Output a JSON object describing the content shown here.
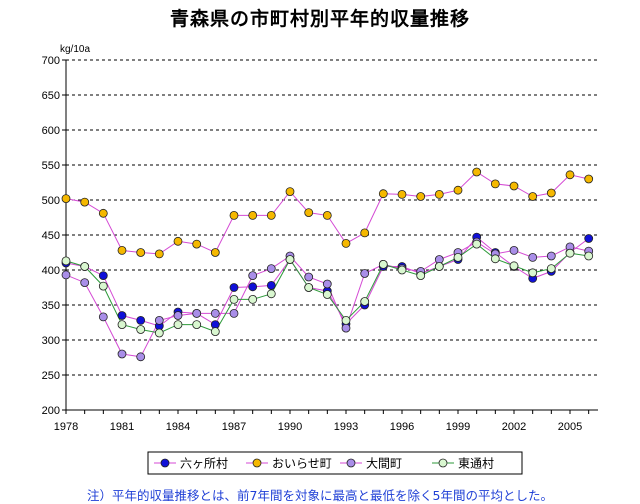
{
  "chart_data": {
    "type": "line",
    "title": "青森県の市町村別平年的収量推移",
    "ylabel": "kg/10a",
    "xlabel": "",
    "ylim": [
      200,
      700
    ],
    "yticks": [
      "200",
      "250",
      "300",
      "350",
      "400",
      "450",
      "500",
      "550",
      "600",
      "650",
      "700"
    ],
    "xticks": [
      "1978",
      "1981",
      "1984",
      "1987",
      "1990",
      "1993",
      "1996",
      "1999",
      "2002",
      "2005"
    ],
    "x": [
      1978,
      1979,
      1980,
      1981,
      1982,
      1983,
      1984,
      1985,
      1986,
      1987,
      1988,
      1989,
      1990,
      1991,
      1992,
      1993,
      1994,
      1995,
      1996,
      1997,
      1998,
      1999,
      2000,
      2001,
      2002,
      2003,
      2004,
      2005,
      2006
    ],
    "grid": true,
    "series": [
      {
        "name": "六ヶ所村",
        "line_color": "#d44ad4",
        "marker_color": "#1010d8",
        "values": [
          410,
          405,
          392,
          335,
          328,
          320,
          340,
          338,
          322,
          375,
          376,
          378,
          415,
          375,
          370,
          323,
          350,
          405,
          405,
          395,
          405,
          415,
          447,
          425,
          405,
          388,
          398,
          425,
          445
        ]
      },
      {
        "name": "おいらせ町",
        "line_color": "#d44ad4",
        "marker_color": "#f5b800",
        "values": [
          502,
          497,
          481,
          428,
          425,
          423,
          441,
          437,
          425,
          478,
          478,
          478,
          512,
          482,
          478,
          438,
          453,
          509,
          508,
          505,
          508,
          514,
          540,
          523,
          520,
          505,
          510,
          536,
          530
        ]
      },
      {
        "name": "大間町",
        "line_color": "#d44ad4",
        "marker_color": "#a98ee8",
        "values": [
          393,
          382,
          333,
          280,
          276,
          328,
          335,
          338,
          338,
          338,
          392,
          402,
          420,
          390,
          380,
          317,
          395,
          408,
          402,
          398,
          415,
          425,
          440,
          423,
          428,
          418,
          420,
          433,
          427
        ]
      },
      {
        "name": "東通村",
        "line_color": "#2e9a3a",
        "marker_color": "#d9f7d0",
        "values": [
          413,
          405,
          377,
          322,
          315,
          310,
          322,
          322,
          312,
          358,
          358,
          366,
          415,
          375,
          365,
          328,
          355,
          408,
          400,
          392,
          405,
          418,
          437,
          416,
          406,
          396,
          402,
          424,
          420
        ]
      }
    ]
  },
  "note": "注）平年的収量推移とは、前7年間を対象に最高と最低を除く5年間の平均とした。"
}
